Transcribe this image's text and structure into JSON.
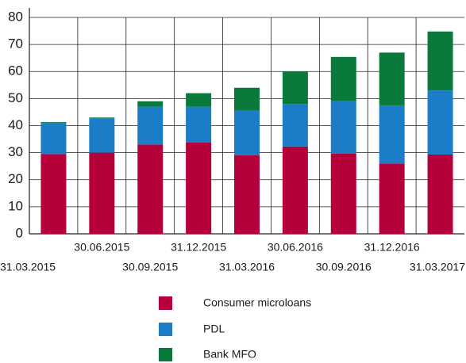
{
  "chart_data": {
    "type": "stacked_bar",
    "categories": [
      "31.03.2015",
      "30.06.2015",
      "30.09.2015",
      "31.12.2015",
      "31.03.2016",
      "30.06.2016",
      "30.09.2016",
      "31.12.2016",
      "31.03.2017"
    ],
    "series": [
      {
        "name": "Consumer microloans",
        "color": "#b5003a",
        "values": [
          29.5,
          30,
          33,
          33.7,
          29,
          32.3,
          29.6,
          26,
          29.3
        ]
      },
      {
        "name": "PDL",
        "color": "#1b7dc8",
        "values": [
          11.5,
          12.7,
          14,
          13.3,
          16.5,
          15.7,
          19.4,
          21.5,
          23.7
        ]
      },
      {
        "name": "Bank MFO",
        "color": "#0a7a3c",
        "values": [
          0.3,
          0.3,
          2,
          5,
          8.5,
          12,
          16.4,
          19.5,
          21.8
        ]
      }
    ],
    "ylim": [
      0,
      80
    ],
    "yticks": [
      0,
      10,
      20,
      30,
      40,
      50,
      60,
      70,
      80
    ],
    "grid": true
  }
}
